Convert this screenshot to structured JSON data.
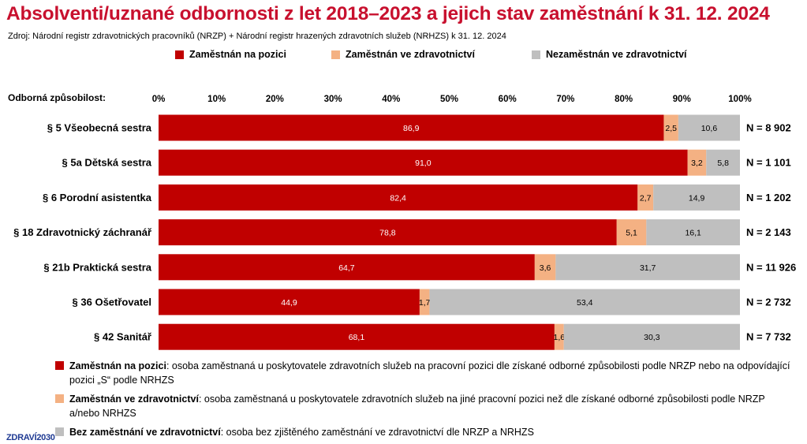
{
  "title": "Absolventi/uznané odbornosti z let 2018–2023 a jejich stav zaměstnání k 31. 12. 2024",
  "source": "Zdroj: Národní registr zdravotnických pracovníků (NRZP) + Národní registr hrazených zdravotních služeb (NRHZS) k 31. 12. 2024",
  "legend": [
    {
      "label": "Zaměstnán na pozici",
      "color": "#c00000"
    },
    {
      "label": "Zaměstnán ve zdravotnictví",
      "color": "#f4b183"
    },
    {
      "label": "Nezaměstnán ve zdravotnictví",
      "color": "#bfbfbf"
    }
  ],
  "axis_title": "Odborná způsobilost:",
  "chart_data": {
    "type": "bar",
    "orientation": "horizontal",
    "stacked": true,
    "categories": [
      "§ 5 Všeobecná sestra",
      "§ 5a Dětská sestra",
      "§ 6 Porodní asistentka",
      "§ 18 Zdravotnický záchranář",
      "§ 21b Praktická sestra",
      "§ 36 Ošetřovatel",
      "§ 42 Sanitář"
    ],
    "series": [
      {
        "name": "Zaměstnán na pozici",
        "color": "#c00000",
        "values": [
          86.9,
          91.0,
          82.4,
          78.8,
          64.7,
          44.9,
          68.1
        ],
        "labels": [
          "86,9",
          "91,0",
          "82,4",
          "78,8",
          "64,7",
          "44,9",
          "68,1"
        ]
      },
      {
        "name": "Zaměstnán ve zdravotnictví",
        "color": "#f4b183",
        "values": [
          2.5,
          3.2,
          2.7,
          5.1,
          3.6,
          1.7,
          1.6
        ],
        "labels": [
          "2,5",
          "3,2",
          "2,7",
          "5,1",
          "3,6",
          "1,7",
          "1,6"
        ]
      },
      {
        "name": "Nezaměstnán ve zdravotnictví",
        "color": "#bfbfbf",
        "values": [
          10.6,
          5.8,
          14.9,
          16.1,
          31.7,
          53.4,
          30.3
        ],
        "labels": [
          "10,6",
          "5,8",
          "14,9",
          "16,1",
          "31,7",
          "53,4",
          "30,3"
        ]
      }
    ],
    "n_labels": [
      "N = 8 902",
      "N = 1 101",
      "N = 1 202",
      "N = 2 143",
      "N = 11 926",
      "N = 2 732",
      "N = 7 732"
    ],
    "xlim": [
      0,
      100
    ],
    "xticks": [
      "0%",
      "10%",
      "20%",
      "30%",
      "40%",
      "50%",
      "60%",
      "70%",
      "80%",
      "90%",
      "100%"
    ],
    "grid": false,
    "legend_position": "top"
  },
  "notes": [
    {
      "term": "Zaměstnán na pozici",
      "text": ": osoba zaměstnaná u poskytovatele zdravotních služeb na pracovní pozici dle získané odborné způsobilosti podle NRZP nebo na odpovídající pozici „S“ podle NRHZS",
      "color": "#c00000"
    },
    {
      "term": "Zaměstnán ve zdravotnictví",
      "text": ": osoba zaměstnaná u poskytovatele zdravotních služeb na jiné pracovní pozici než dle získané odborné způsobilosti podle NRZP a/nebo NRHZS",
      "color": "#f4b183"
    },
    {
      "term": "Bez zaměstnání ve zdravotnictví",
      "text": ": osoba bez zjištěného zaměstnání ve zdravotnictví dle NRZP a NRHZS",
      "color": "#bfbfbf"
    }
  ],
  "logo": "ZDRAVÍ2030"
}
